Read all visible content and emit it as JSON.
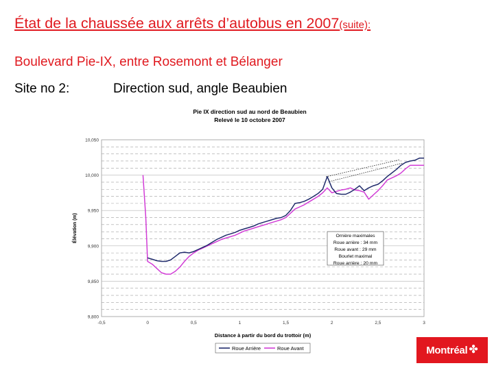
{
  "slide": {
    "title": "État de la chaussée aux arrêts d’autobus en 2007",
    "title_suffix": "(suite):",
    "subtitle": "Boulevard Pie-IX, entre Rosemont et Bélanger",
    "site_label": "Site no 2:",
    "site_direction": "Direction sud, angle Beaubien"
  },
  "logo": {
    "text": "Montréal",
    "icon": "montreal-rosette-icon"
  },
  "colors": {
    "title_red": "#e0191f",
    "rear_wheel": "#1f2a6b",
    "front_wheel": "#d13cd6",
    "logo_bg": "#e2171f"
  },
  "chart_data": {
    "type": "line",
    "title": "Pie IX direction sud au nord de Beaubien",
    "subtitle": "Relevé le 10 octobre 2007",
    "xlabel": "Distance à partir du bord du trottoir (m)",
    "ylabel": "Élévation (m)",
    "xlim": [
      -0.5,
      3
    ],
    "ylim": [
      9.8,
      10.05
    ],
    "x_ticks": [
      "-0,5",
      "0",
      "0,5",
      "1",
      "1,5",
      "2",
      "2,5",
      "3"
    ],
    "y_ticks": [
      "9,800",
      "9,850",
      "9,900",
      "9,950",
      "10,000",
      "10,050"
    ],
    "grid": true,
    "legend_position": "bottom",
    "annotation_lines": [
      "Ornière maximales",
      "Roue arrière : 34 mm",
      "Roue avant : 29 mm",
      "Bourlet maximal",
      "Roue arrière : 20 mm"
    ],
    "series": [
      {
        "name": "Roue Arrière",
        "x": [
          0.0,
          0.05,
          0.1,
          0.15,
          0.2,
          0.25,
          0.3,
          0.35,
          0.4,
          0.45,
          0.5,
          0.55,
          0.6,
          0.65,
          0.7,
          0.75,
          0.8,
          0.85,
          0.9,
          0.95,
          1.0,
          1.05,
          1.1,
          1.15,
          1.2,
          1.25,
          1.3,
          1.35,
          1.4,
          1.45,
          1.5,
          1.55,
          1.6,
          1.65,
          1.7,
          1.75,
          1.8,
          1.85,
          1.9,
          1.95,
          2.0,
          2.05,
          2.1,
          2.15,
          2.2,
          2.25,
          2.3,
          2.35,
          2.4,
          2.45,
          2.5,
          2.55,
          2.6,
          2.65,
          2.7,
          2.75,
          2.8,
          2.85,
          2.9,
          2.95,
          3.0
        ],
        "values": [
          9.883,
          9.881,
          9.879,
          9.878,
          9.878,
          9.88,
          9.885,
          9.89,
          9.891,
          9.89,
          9.892,
          9.895,
          9.898,
          9.901,
          9.905,
          9.909,
          9.912,
          9.915,
          9.917,
          9.919,
          9.922,
          9.924,
          9.926,
          9.928,
          9.931,
          9.933,
          9.935,
          9.937,
          9.939,
          9.94,
          9.943,
          9.95,
          9.96,
          9.961,
          9.963,
          9.966,
          9.97,
          9.974,
          9.98,
          9.998,
          9.982,
          9.974,
          9.973,
          9.973,
          9.976,
          9.98,
          9.985,
          9.978,
          9.982,
          9.985,
          9.987,
          9.992,
          9.998,
          10.003,
          10.008,
          10.014,
          10.018,
          10.02,
          10.021,
          10.024,
          10.024
        ]
      },
      {
        "name": "Roue Avant",
        "x": [
          -0.05,
          -0.02,
          0.0,
          0.05,
          0.1,
          0.15,
          0.2,
          0.25,
          0.3,
          0.35,
          0.4,
          0.45,
          0.5,
          0.55,
          0.6,
          0.65,
          0.7,
          0.75,
          0.8,
          0.85,
          0.9,
          0.95,
          1.0,
          1.05,
          1.1,
          1.15,
          1.2,
          1.25,
          1.3,
          1.35,
          1.4,
          1.45,
          1.5,
          1.55,
          1.6,
          1.65,
          1.7,
          1.75,
          1.8,
          1.85,
          1.9,
          1.95,
          2.0,
          2.05,
          2.1,
          2.15,
          2.2,
          2.25,
          2.3,
          2.35,
          2.4,
          2.45,
          2.5,
          2.55,
          2.6,
          2.65,
          2.7,
          2.75,
          2.8,
          2.85,
          2.9,
          2.95,
          3.0
        ],
        "values": [
          10.0,
          9.94,
          9.878,
          9.874,
          9.868,
          9.862,
          9.86,
          9.86,
          9.864,
          9.87,
          9.878,
          9.885,
          9.89,
          9.894,
          9.897,
          9.9,
          9.903,
          9.906,
          9.909,
          9.911,
          9.913,
          9.915,
          9.918,
          9.921,
          9.923,
          9.925,
          9.927,
          9.929,
          9.931,
          9.933,
          9.935,
          9.937,
          9.94,
          9.946,
          9.952,
          9.955,
          9.958,
          9.962,
          9.966,
          9.97,
          9.975,
          9.982,
          9.975,
          9.977,
          9.979,
          9.98,
          9.982,
          9.979,
          9.978,
          9.976,
          9.966,
          9.972,
          9.978,
          9.985,
          9.993,
          9.996,
          9.999,
          10.003,
          10.009,
          10.014,
          10.014,
          10.014,
          10.014
        ]
      }
    ]
  }
}
